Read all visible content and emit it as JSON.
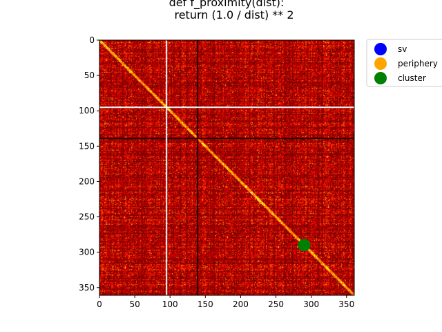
{
  "chart_data": {
    "type": "heatmap",
    "title_lines": [
      "def f_proximity(dist):",
      "return (1.0 / dist) ** 2"
    ],
    "xlabel": "",
    "ylabel": "",
    "xlim": [
      0,
      361
    ],
    "ylim": [
      361,
      0
    ],
    "x_ticks": [
      0,
      50,
      100,
      150,
      200,
      250,
      300,
      350
    ],
    "y_ticks": [
      0,
      50,
      100,
      150,
      200,
      250,
      300,
      350
    ],
    "colormap": "hot",
    "matrix_size": 361,
    "gap_rows_cols": [
      94,
      95
    ],
    "dark_bands": [
      138,
      139
    ],
    "points": [
      {
        "series": "cluster",
        "x": 290,
        "y": 290,
        "color": "#008000"
      }
    ],
    "legend": {
      "position": "upper-right outside",
      "entries": [
        {
          "label": "sv",
          "color": "#0000ff"
        },
        {
          "label": "periphery",
          "color": "#ffa500"
        },
        {
          "label": "cluster",
          "color": "#008000"
        }
      ]
    }
  }
}
